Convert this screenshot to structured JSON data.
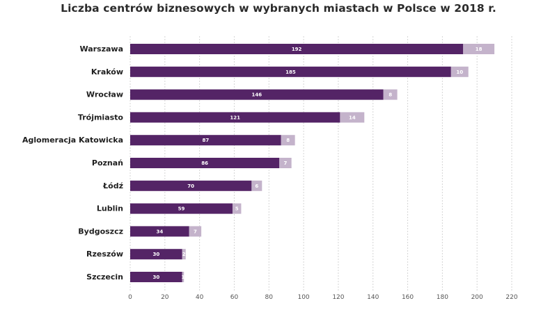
{
  "title": "Liczba centrów biznesowych w wybranych miastach w Polsce w 2018 r.",
  "chart_data": {
    "type": "bar",
    "orientation": "horizontal",
    "stacked": true,
    "title": "Liczba centrów biznesowych w wybranych miastach w Polsce w 2018 r.",
    "categories": [
      "Warszawa",
      "Kraków",
      "Wrocław",
      "Trójmiasto",
      "Aglomeracja Katowicka",
      "Poznań",
      "Łódź",
      "Lublin",
      "Bydgoszcz",
      "Rzeszów",
      "Szczecin"
    ],
    "series": [
      {
        "values": [
          192,
          185,
          146,
          121,
          87,
          86,
          70,
          59,
          34,
          30,
          30
        ],
        "color": "#542466"
      },
      {
        "values": [
          18,
          10,
          8,
          14,
          8,
          7,
          6,
          5,
          7,
          2,
          1
        ],
        "color": "#c4b3cb"
      }
    ],
    "x_ticks": [
      "0",
      "20",
      "40",
      "60",
      "80",
      "100",
      "120",
      "140",
      "160",
      "180",
      "200",
      "220"
    ],
    "xlim": [
      0,
      220
    ],
    "grid": "vertical dotted",
    "legend": "none"
  }
}
